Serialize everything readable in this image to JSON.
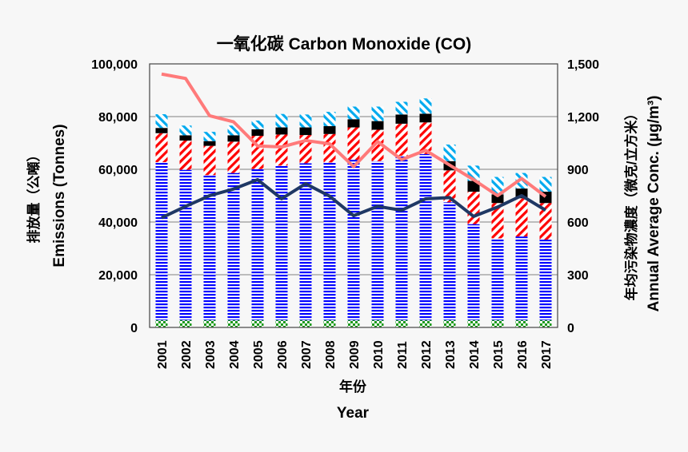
{
  "chart_data": {
    "type": "bar",
    "title": "一氧化碳 Carbon Monoxide (CO)",
    "xlabel_zh": "年份",
    "xlabel": "Year",
    "ylabel_zh": "排放量（公噸）",
    "ylabel": "Emissions (Tonnes)",
    "y2label_zh": "年均污染物濃度（微克/立方米）",
    "y2label": "Annual Average Conc. (μg/m³)",
    "categories": [
      "2001",
      "2002",
      "2003",
      "2004",
      "2005",
      "2006",
      "2007",
      "2008",
      "2009",
      "2010",
      "2011",
      "2012",
      "2013",
      "2014",
      "2015",
      "2016",
      "2017"
    ],
    "ylim": [
      0,
      100000
    ],
    "yticks": [
      "0",
      "20,000",
      "40,000",
      "60,000",
      "80,000",
      "100,000"
    ],
    "y2lim": [
      0,
      1500
    ],
    "y2ticks": [
      "0",
      "300",
      "600",
      "900",
      "1,200",
      "1,500"
    ],
    "grid": true,
    "stacked_series": [
      {
        "color": "#1a9a1a",
        "pattern": "checker",
        "values": [
          2800,
          2800,
          2800,
          2800,
          2800,
          2800,
          2800,
          2800,
          2800,
          2800,
          2800,
          2800,
          2800,
          2800,
          2800,
          2800,
          2800
        ]
      },
      {
        "color": "#0000ff",
        "pattern": "horizontal",
        "values": [
          59900,
          57000,
          55000,
          55800,
          57300,
          58600,
          59500,
          59800,
          60800,
          60300,
          62300,
          63000,
          44700,
          36400,
          31000,
          31700,
          30500
        ]
      },
      {
        "color": "#ff0000",
        "pattern": "diagonal-down",
        "values": [
          11000,
          11100,
          11100,
          11900,
          12600,
          11800,
          10700,
          10800,
          12300,
          11900,
          12200,
          12000,
          12100,
          12300,
          13400,
          14500,
          13900
        ]
      },
      {
        "color": "#000000",
        "pattern": "solid",
        "values": [
          2000,
          2000,
          1800,
          2400,
          2500,
          2700,
          2900,
          3000,
          3100,
          3300,
          3500,
          3300,
          3500,
          4100,
          3300,
          3700,
          4300
        ]
      },
      {
        "color": "#00aaee",
        "pattern": "diagonal-up",
        "values": [
          5200,
          3700,
          3500,
          3700,
          3300,
          5100,
          4900,
          5400,
          4800,
          5500,
          4800,
          5800,
          6300,
          5800,
          6600,
          5900,
          5600
        ]
      }
    ],
    "line_series": [
      {
        "color": "#ff7a7a",
        "axis": "right",
        "values": [
          1442,
          1417,
          1205,
          1170,
          1033,
          1027,
          1064,
          1045,
          915,
          1058,
          955,
          1008,
          924,
          841,
          750,
          848,
          745
        ]
      },
      {
        "color": "#1f3864",
        "axis": "right",
        "values": [
          624,
          689,
          750,
          788,
          841,
          732,
          818,
          747,
          636,
          689,
          667,
          732,
          739,
          632,
          685,
          750,
          667
        ]
      }
    ]
  }
}
